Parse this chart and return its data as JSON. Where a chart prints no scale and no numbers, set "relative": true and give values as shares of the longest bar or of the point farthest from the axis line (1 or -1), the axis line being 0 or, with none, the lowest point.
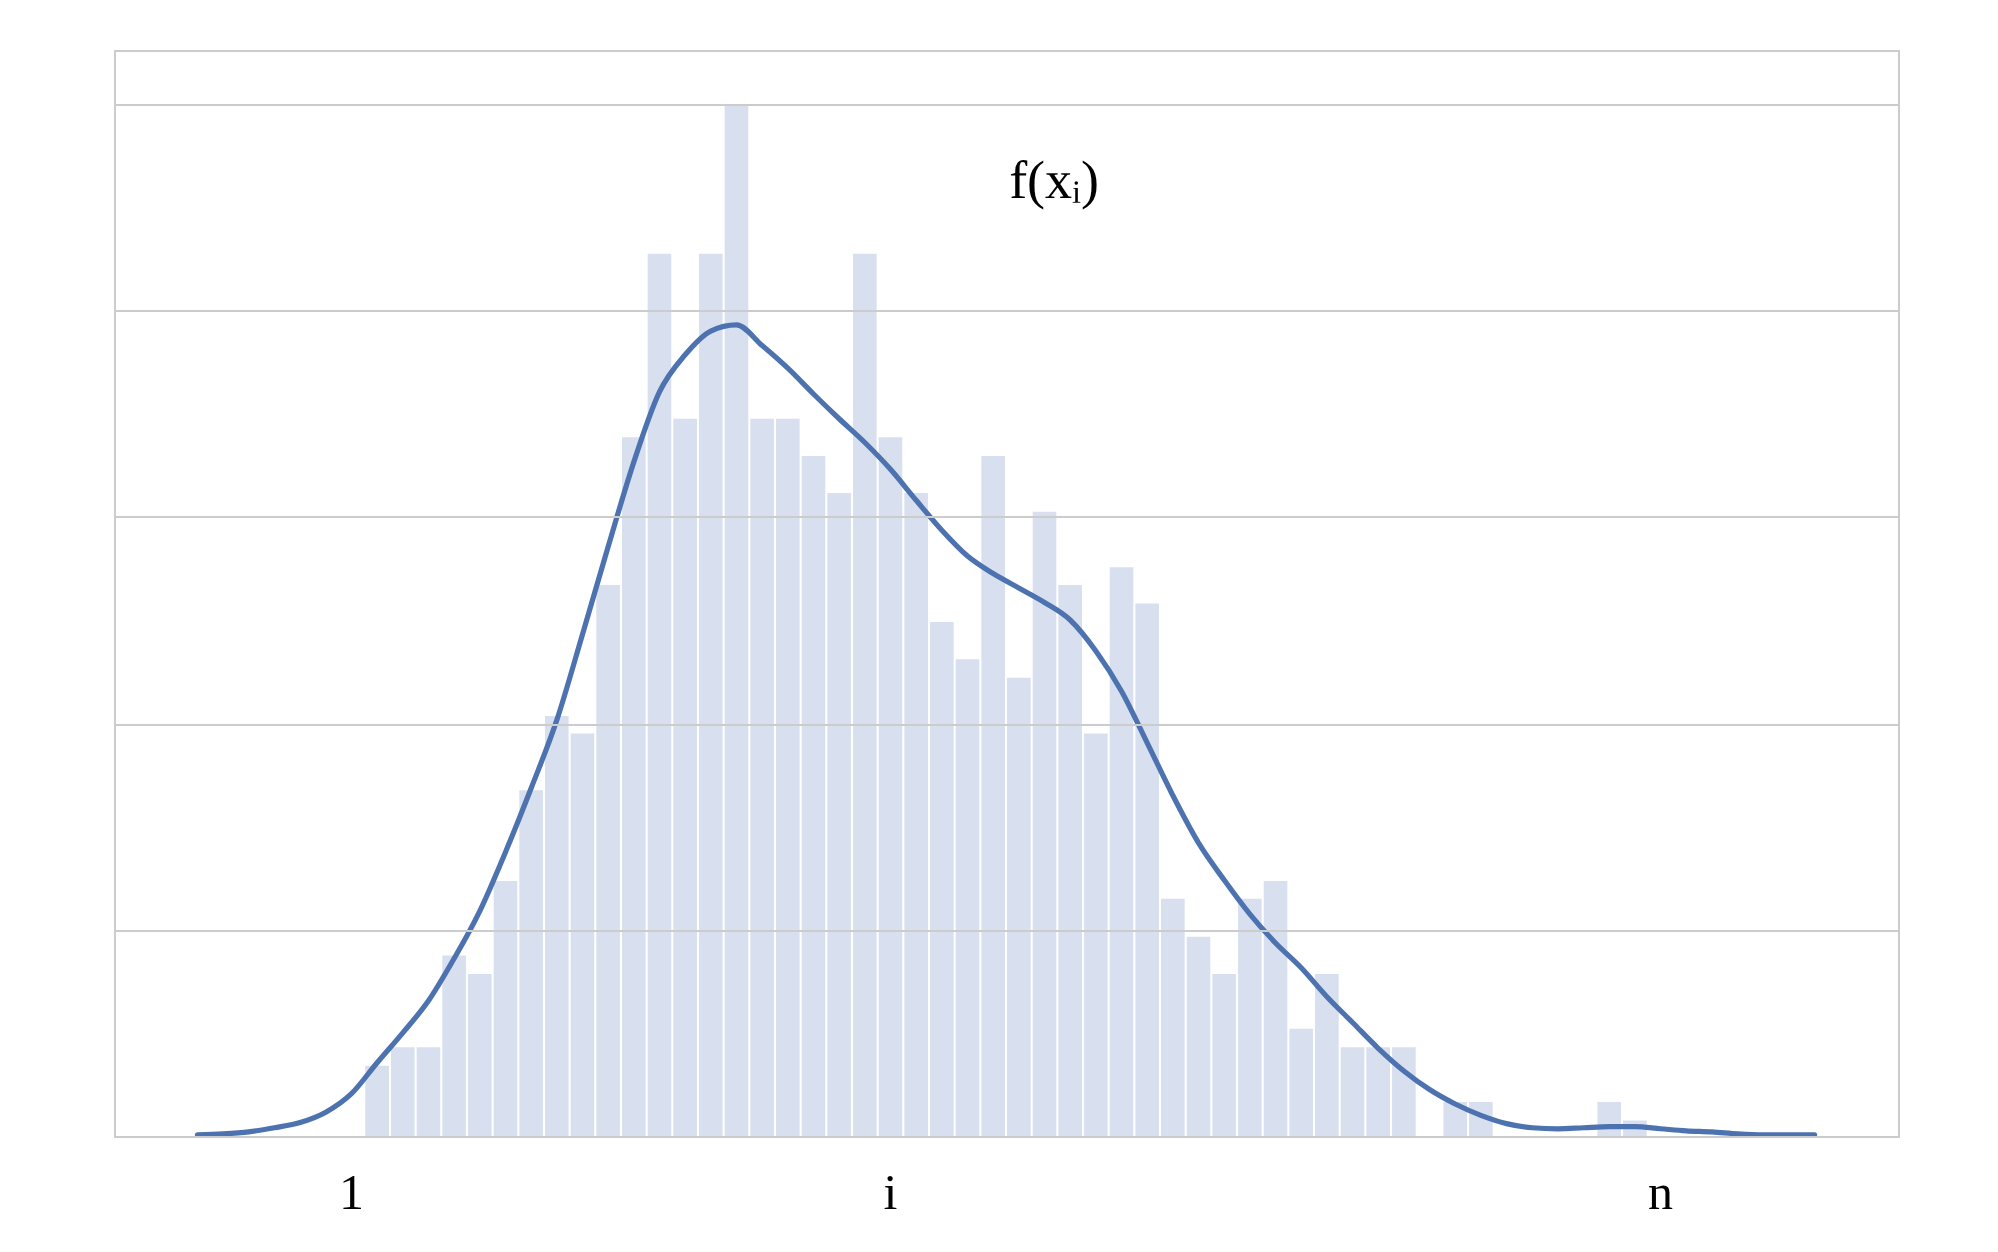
{
  "chart_data": {
    "type": "bar",
    "relative": true,
    "grid": "y",
    "categories": [
      null,
      null,
      null,
      null,
      null,
      null,
      null,
      null,
      "1",
      null,
      null,
      null,
      null,
      null,
      null,
      null,
      null,
      null,
      null,
      null,
      null,
      null,
      null,
      null,
      null,
      null,
      null,
      null,
      null,
      "i",
      null,
      null,
      null,
      null,
      null,
      null,
      null,
      null,
      null,
      null,
      null,
      null,
      null,
      null,
      null,
      null,
      null,
      null,
      null,
      null,
      null,
      null,
      null,
      null,
      null,
      null,
      null,
      null,
      null,
      "n",
      null,
      null,
      null,
      null,
      null,
      null,
      null,
      null
    ],
    "series": [
      {
        "color": "#d8dfee",
        "values": [
          null,
          null,
          null,
          null,
          null,
          null,
          null,
          null,
          null,
          0.068,
          0.086,
          0.086,
          0.175,
          0.157,
          0.247,
          0.335,
          0.407,
          0.39,
          0.534,
          0.677,
          0.855,
          0.695,
          0.855,
          1,
          0.695,
          0.695,
          0.659,
          0.623,
          0.855,
          0.677,
          0.623,
          0.498,
          0.462,
          0.659,
          0.444,
          0.605,
          0.534,
          0.39,
          0.551,
          0.516,
          0.23,
          0.193,
          0.157,
          0.23,
          0.247,
          0.104,
          0.157,
          0.086,
          0.086,
          0.086,
          0,
          0.033,
          0.033,
          0,
          0,
          0,
          0,
          0.033,
          0.015,
          null,
          null,
          null,
          null,
          null,
          null,
          null,
          null,
          null
        ]
      },
      {
        "type": "line",
        "color": "#4c72b0",
        "values": [
          null,
          null,
          0.001,
          0.002,
          0.004,
          0.008,
          0.013,
          0.023,
          0.041,
          0.071,
          0.1,
          0.131,
          0.172,
          0.218,
          0.275,
          0.337,
          0.403,
          0.486,
          0.571,
          0.653,
          0.721,
          0.757,
          0.78,
          0.786,
          0.766,
          0.744,
          0.719,
          0.695,
          0.672,
          0.646,
          0.616,
          0.587,
          0.562,
          0.545,
          0.531,
          0.517,
          0.5,
          0.47,
          0.431,
          0.381,
          0.33,
          0.284,
          0.248,
          0.215,
          0.187,
          0.163,
          0.135,
          0.11,
          0.085,
          0.063,
          0.045,
          0.031,
          0.02,
          0.012,
          0.008,
          0.007,
          0.008,
          0.009,
          0.009,
          0.007,
          0.005,
          0.004,
          0.002,
          0.001,
          0.001,
          0.001,
          null,
          null
        ]
      }
    ],
    "annotations": [
      "f(xᵢ)"
    ]
  }
}
